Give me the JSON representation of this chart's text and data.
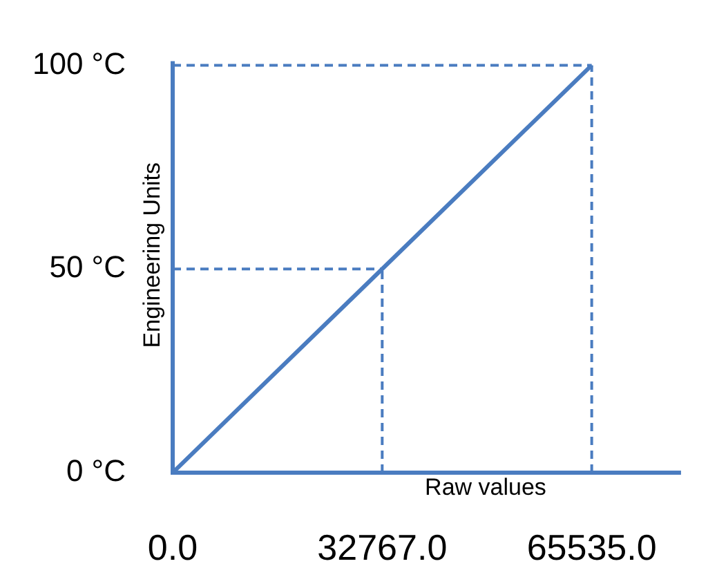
{
  "chart_data": {
    "type": "line",
    "xlabel": "Raw values",
    "ylabel": "Engineering Units",
    "x": [
      0,
      65535
    ],
    "series": [
      {
        "color": "#4a7cc0",
        "values": [
          0,
          100
        ]
      }
    ],
    "xlim": [
      0,
      79500
    ],
    "ylim": [
      0,
      100
    ],
    "xticks": [
      {
        "value": 0,
        "label": "0.0"
      },
      {
        "value": 32767,
        "label": "32767.0"
      },
      {
        "value": 65535,
        "label": "65535.0"
      }
    ],
    "yticks": [
      {
        "value": 0,
        "label": "0 °C"
      },
      {
        "value": 50,
        "label": "50 °C"
      },
      {
        "value": 100,
        "label": "100 °C"
      }
    ],
    "ref_lines": [
      {
        "axis": "x",
        "value": 32767,
        "color": "#4a7cc0",
        "line_style": "dashed"
      },
      {
        "axis": "y",
        "value": 50,
        "color": "#4a7cc0",
        "line_style": "dashed"
      },
      {
        "axis": "x",
        "value": 65535,
        "color": "#4a7cc0",
        "line_style": "dashed"
      },
      {
        "axis": "y",
        "value": 100,
        "color": "#4a7cc0",
        "line_style": "dashed"
      }
    ],
    "grid": false,
    "legend": false,
    "marker": "none",
    "line_style": "solid"
  }
}
